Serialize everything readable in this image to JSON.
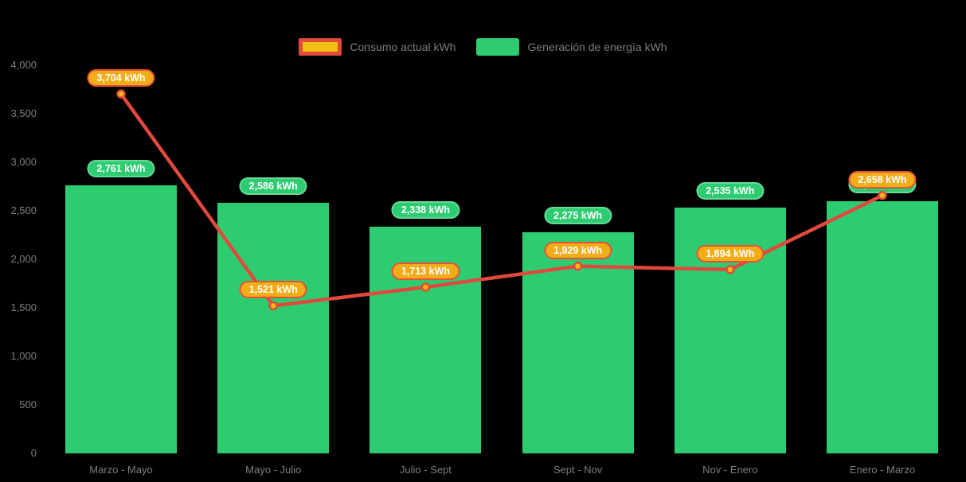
{
  "background": "#000000",
  "axis_text_color": "#7d7d7d",
  "chart_data": {
    "type": "combo",
    "title": "",
    "xlabel": "",
    "ylabel": "",
    "ylim": [
      0,
      4000
    ],
    "grid": false,
    "legend_position": "top",
    "categories": [
      "Marzo - Mayo",
      "Mayo - Julio",
      "Julio - Sept",
      "Sept - Nov",
      "Nov - Enero",
      "Enero - Marzo"
    ],
    "ytick_labels": [
      "4,000",
      "3,500",
      "3,000",
      "2,500",
      "2,000",
      "1,500",
      "1,000",
      "500",
      "0"
    ],
    "yticks": [
      4000,
      3500,
      3000,
      2500,
      2000,
      1500,
      1000,
      500,
      0
    ],
    "series": [
      {
        "name": "Consumo actual kWh",
        "type": "line",
        "color": "#e2493d",
        "marker_fill": "#f3b61a",
        "label_fill": "#f1ad18",
        "label_border": "#e8503a",
        "values": [
          3704,
          1521,
          1713,
          1929,
          1894,
          2658
        ],
        "labels": [
          "3,704 kWh",
          "1,521 kWh",
          "1,713 kWh",
          "1,929 kWh",
          "1,894 kWh",
          "2,658 kWh"
        ]
      },
      {
        "name": "Generación de energía kWh",
        "type": "bar",
        "color": "#2ecc71",
        "label_fill": "#2ecc71",
        "label_border": "#67da99",
        "values": [
          2761,
          2586,
          2338,
          2275,
          2535,
          2602
        ],
        "labels": [
          "2,761 kWh",
          "2,586 kWh",
          "2,338 kWh",
          "2,275 kWh",
          "2,535 kWh",
          "2,602 kWh"
        ]
      }
    ]
  }
}
